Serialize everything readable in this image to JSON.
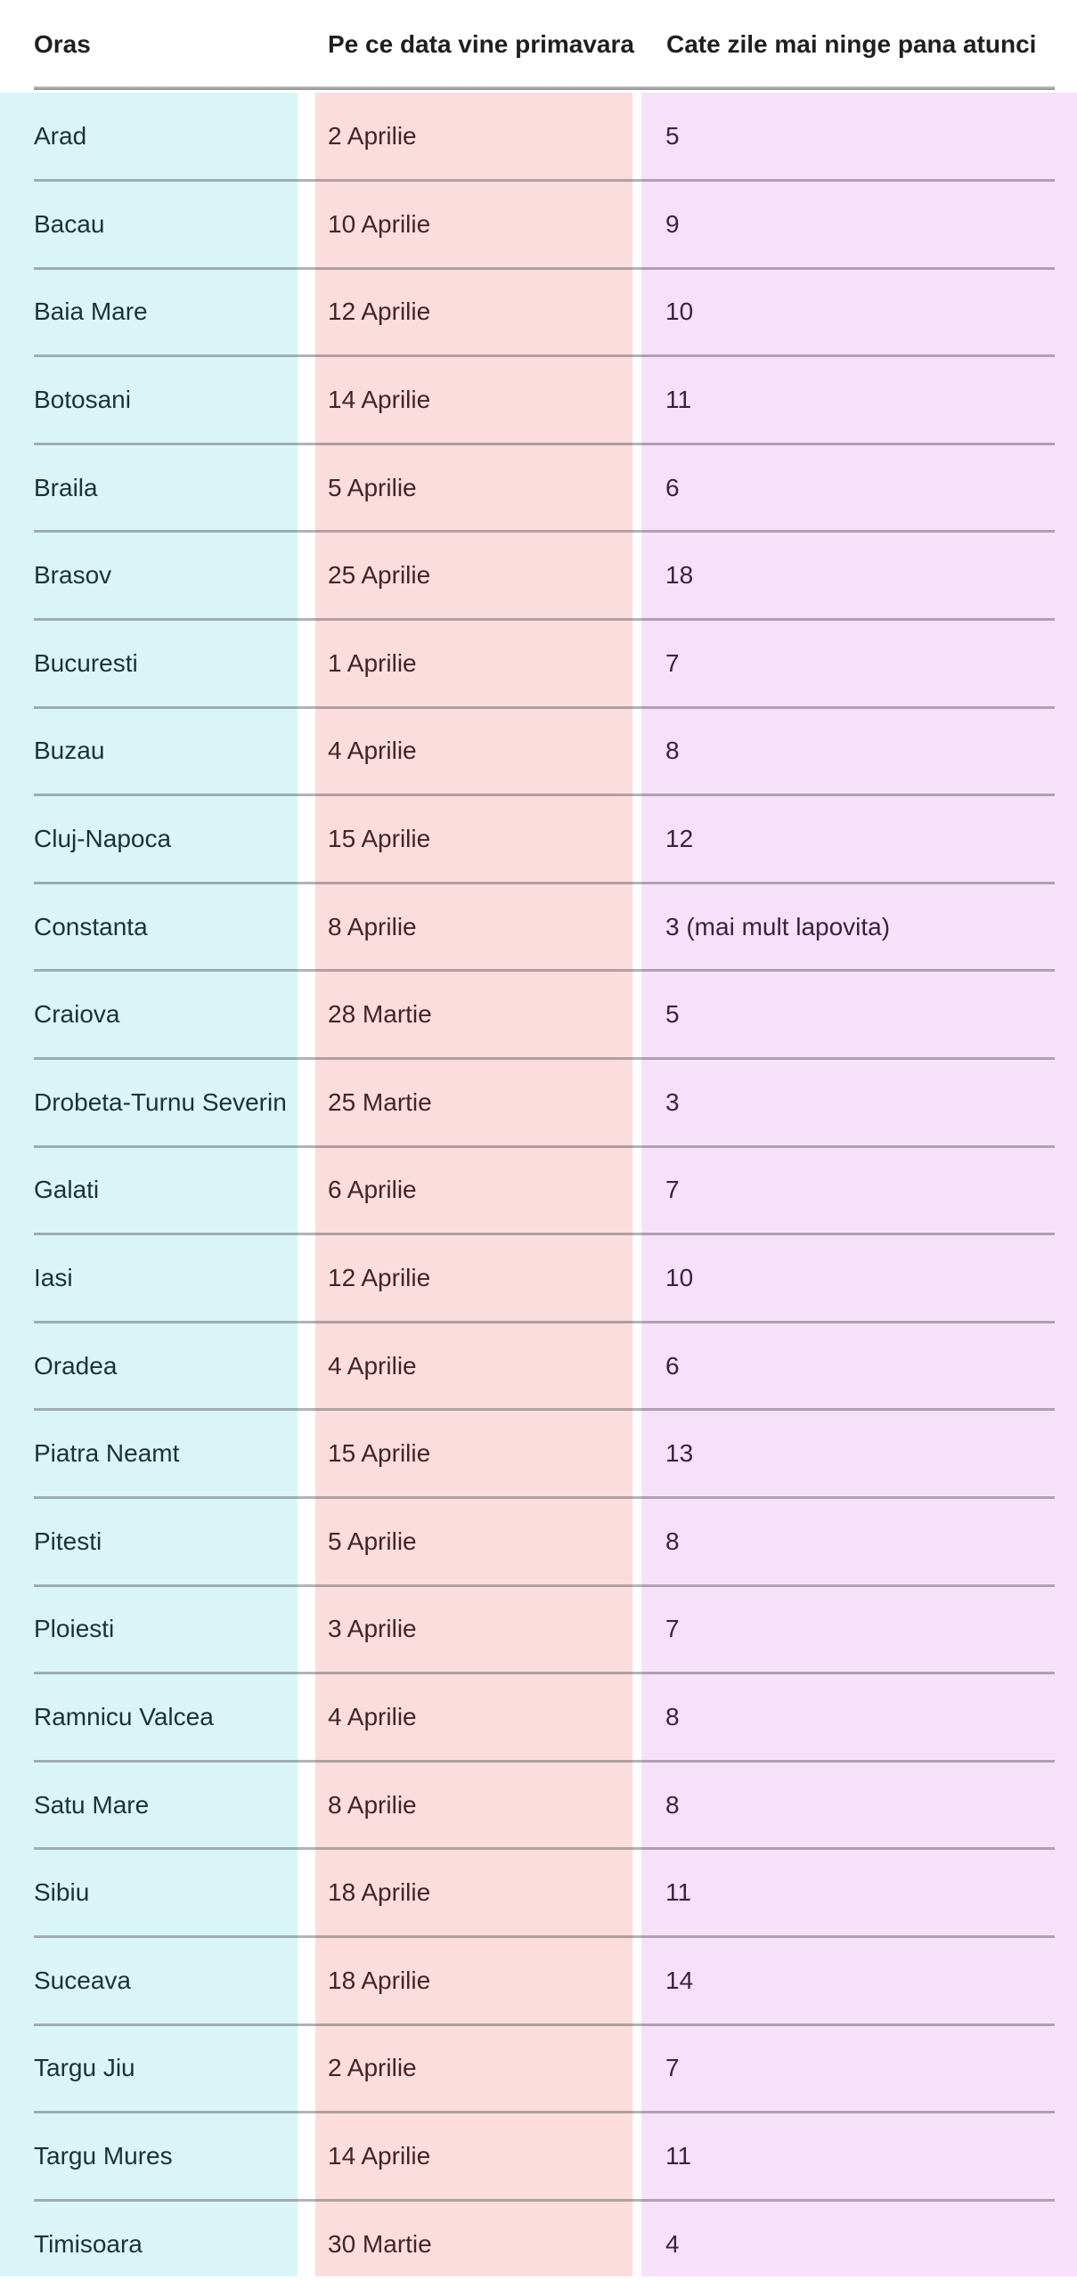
{
  "chart_data": {
    "type": "table",
    "columns": [
      "Oras",
      "Pe ce data vine primavara",
      "Cate zile mai ninge pana atunci"
    ],
    "rows": [
      {
        "city": "Arad",
        "date": "2 Aprilie",
        "days": "5"
      },
      {
        "city": "Bacau",
        "date": "10 Aprilie",
        "days": "9"
      },
      {
        "city": "Baia Mare",
        "date": "12 Aprilie",
        "days": "10"
      },
      {
        "city": "Botosani",
        "date": "14 Aprilie",
        "days": "11"
      },
      {
        "city": "Braila",
        "date": "5 Aprilie",
        "days": "6"
      },
      {
        "city": "Brasov",
        "date": "25 Aprilie",
        "days": "18"
      },
      {
        "city": "Bucuresti",
        "date": "1 Aprilie",
        "days": "7"
      },
      {
        "city": "Buzau",
        "date": "4 Aprilie",
        "days": "8"
      },
      {
        "city": "Cluj-Napoca",
        "date": "15 Aprilie",
        "days": "12"
      },
      {
        "city": "Constanta",
        "date": "8 Aprilie",
        "days": "3 (mai mult lapovita)"
      },
      {
        "city": "Craiova",
        "date": "28 Martie",
        "days": "5"
      },
      {
        "city": "Drobeta-Turnu Severin",
        "date": "25 Martie",
        "days": "3"
      },
      {
        "city": "Galati",
        "date": "6 Aprilie",
        "days": "7"
      },
      {
        "city": "Iasi",
        "date": "12 Aprilie",
        "days": "10"
      },
      {
        "city": "Oradea",
        "date": "4 Aprilie",
        "days": "6"
      },
      {
        "city": "Piatra Neamt",
        "date": "15 Aprilie",
        "days": "13"
      },
      {
        "city": "Pitesti",
        "date": "5 Aprilie",
        "days": "8"
      },
      {
        "city": "Ploiesti",
        "date": "3 Aprilie",
        "days": "7"
      },
      {
        "city": "Ramnicu Valcea",
        "date": "4 Aprilie",
        "days": "8"
      },
      {
        "city": "Satu Mare",
        "date": "8 Aprilie",
        "days": "8"
      },
      {
        "city": "Sibiu",
        "date": "18 Aprilie",
        "days": "11"
      },
      {
        "city": "Suceava",
        "date": "18 Aprilie",
        "days": "14"
      },
      {
        "city": "Targu Jiu",
        "date": "2 Aprilie",
        "days": "7"
      },
      {
        "city": "Targu Mures",
        "date": "14 Aprilie",
        "days": "11"
      },
      {
        "city": "Timisoara",
        "date": "30 Martie",
        "days": "4"
      }
    ]
  },
  "colors": {
    "city_col_bg": "#d9f5f8",
    "date_col_bg": "#fbdddd",
    "days_col_bg": "#f7e1fa",
    "city_text": "#1a3238",
    "date_text": "#45232a",
    "days_text": "#3c2142",
    "header_text": "#1f1f1f"
  }
}
